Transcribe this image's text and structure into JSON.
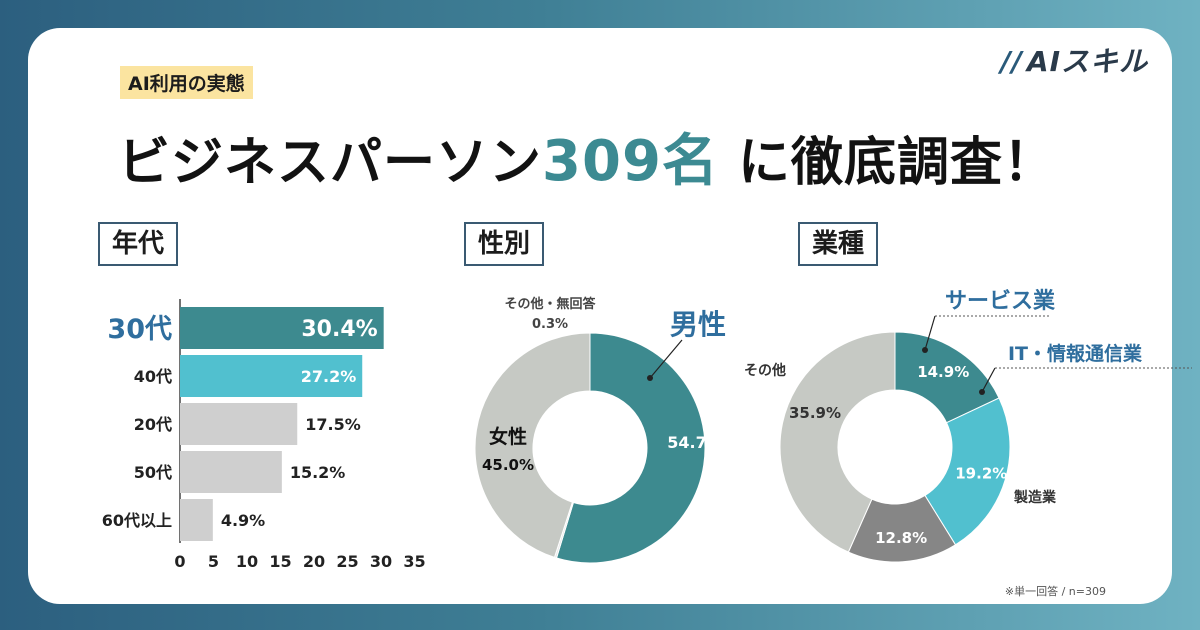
{
  "logo": "AIスキル",
  "tag": "AI利用の実態",
  "headline": {
    "pre": "ビジネスパーソン",
    "highlight": "309名",
    "post": "に徹底調査！"
  },
  "sections": {
    "age": "年代",
    "gender": "性別",
    "industry": "業種"
  },
  "note": "※単一回答 / n=309",
  "colors": {
    "dark_teal": "#3d8a8f",
    "light_teal": "#51c0cf",
    "gray": "#cfcfcf",
    "pie_gray": "#c6c9c4",
    "dark_gray": "#868686",
    "label_blue": "#2f6e9e"
  },
  "chart_data": [
    {
      "type": "bar",
      "orientation": "horizontal",
      "categories": [
        "30代",
        "40代",
        "20代",
        "50代",
        "60代以上"
      ],
      "values": [
        30.4,
        27.2,
        17.5,
        15.2,
        4.9
      ],
      "value_labels": [
        "30.4%",
        "27.2%",
        "17.5%",
        "15.2%",
        "4.9%"
      ],
      "xlim": [
        0,
        35
      ],
      "xticks": [
        "0",
        "5",
        "10",
        "15",
        "20",
        "25",
        "30",
        "35"
      ]
    },
    {
      "type": "pie",
      "donut": true,
      "slices": [
        {
          "label": "男性",
          "value": 54.7,
          "value_label": "54.7%"
        },
        {
          "label": "その他・無回答",
          "value": 0.3,
          "value_label": "0.3%"
        },
        {
          "label": "女性",
          "value": 45.0,
          "value_label": "45.0%"
        }
      ]
    },
    {
      "type": "pie",
      "donut": true,
      "slices": [
        {
          "label": "サービス業",
          "value": 14.9,
          "value_label": "14.9%"
        },
        {
          "label": "IT・情報通信業",
          "value": 19.2,
          "value_label": "19.2%"
        },
        {
          "label": "製造業",
          "value": 12.8,
          "value_label": "12.8%"
        },
        {
          "label": "その他",
          "value": 35.9,
          "value_label": "35.9%"
        }
      ]
    }
  ]
}
